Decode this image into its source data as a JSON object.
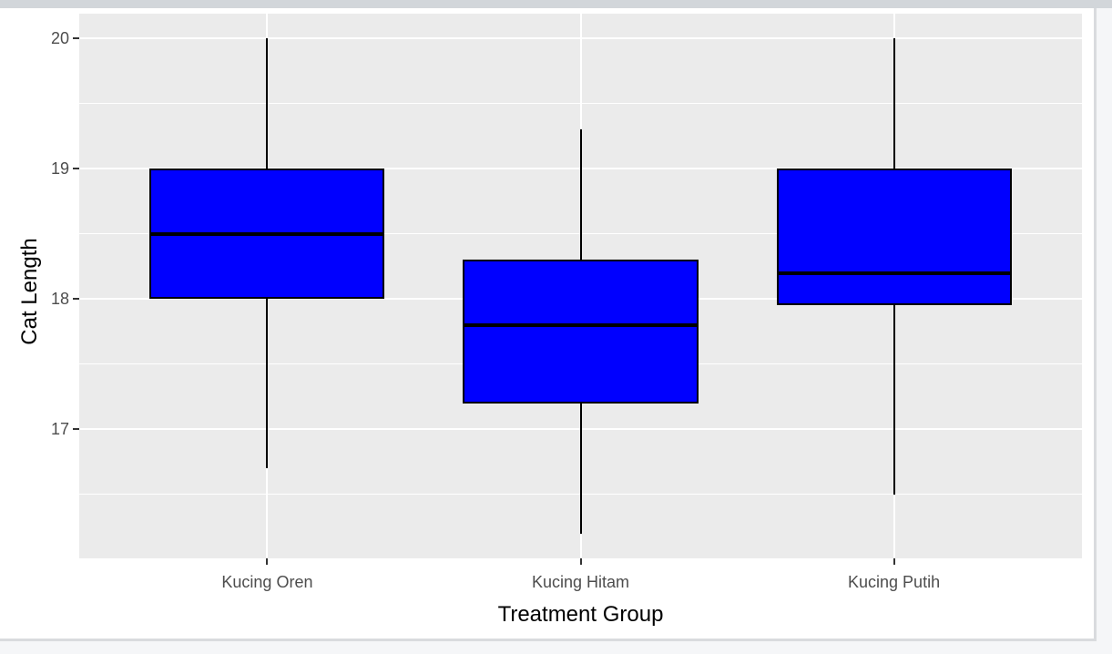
{
  "window": {
    "background_color": "#F5F6F8",
    "top_strip_color": "#D2D6DA",
    "card_background": "#FFFFFF",
    "card_border_color": "#D9DBDE"
  },
  "chart_data": {
    "type": "boxplot",
    "title": "",
    "xlabel": "Treatment Group",
    "ylabel": "Cat Length",
    "categories": [
      "Kucing Oren",
      "Kucing Hitam",
      "Kucing Putih"
    ],
    "series": [
      {
        "name": "Kucing Oren",
        "whisker_low": 16.7,
        "q1": 18.0,
        "median": 18.5,
        "q3": 19.0,
        "whisker_high": 20.0
      },
      {
        "name": "Kucing Hitam",
        "whisker_low": 16.2,
        "q1": 17.2,
        "median": 17.8,
        "q3": 18.3,
        "whisker_high": 19.3
      },
      {
        "name": "Kucing Putih",
        "whisker_low": 16.5,
        "q1": 17.95,
        "median": 18.2,
        "q3": 19.0,
        "whisker_high": 20.0
      }
    ],
    "yticks": [
      20,
      19,
      18,
      17
    ],
    "yticks_minor": [
      19.5,
      18.5,
      17.5,
      16.5
    ],
    "ylim": [
      16.01,
      20.19
    ],
    "xlim": [
      0.4,
      3.6
    ],
    "x_positions": [
      1,
      2,
      3
    ],
    "box_width": 0.75,
    "grid": "white major and minor horizontal lines, white vertical line per category, on grey panel",
    "legend_position": "none",
    "colors": {
      "box_fill": "#0000FF",
      "box_border": "#000000",
      "median_line": "#000000",
      "whisker": "#000000",
      "panel_background": "#EBEBEB",
      "gridline": "#FFFFFF",
      "tick_mark": "#333333",
      "tick_text": "#4D4D4D",
      "axis_title_text": "#000000"
    }
  }
}
